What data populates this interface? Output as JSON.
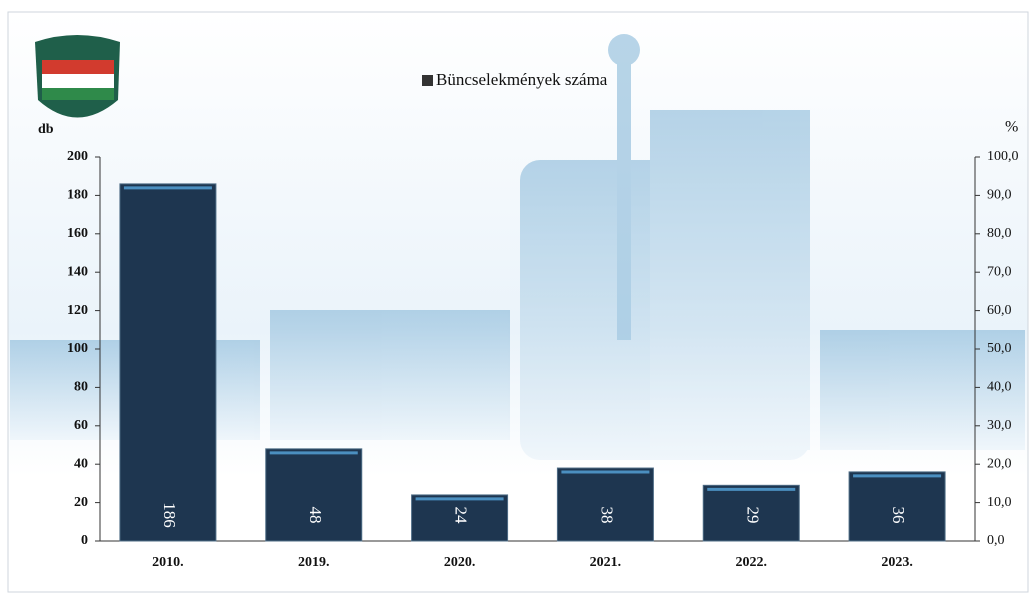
{
  "chart_data": {
    "type": "bar",
    "legend": "Büncselekmények száma",
    "y_label": "db",
    "y2_label": "%",
    "categories": [
      "2010.",
      "2019.",
      "2020.",
      "2021.",
      "2022.",
      "2023."
    ],
    "values": [
      186,
      48,
      24,
      38,
      29,
      36
    ],
    "color": "#1e3650",
    "ylim": [
      0,
      200
    ],
    "yticks": [
      0,
      20,
      40,
      60,
      80,
      100,
      120,
      140,
      160,
      180,
      200
    ],
    "y2lim": [
      0,
      100
    ],
    "y2ticks": [
      {
        "value": 0,
        "label": "0,0"
      },
      {
        "value": 10,
        "label": "10,0"
      },
      {
        "value": 20,
        "label": "20,0"
      },
      {
        "value": 30,
        "label": "30,0"
      },
      {
        "value": 40,
        "label": "40,0"
      },
      {
        "value": 50,
        "label": "50,0"
      },
      {
        "value": 60,
        "label": "60,0"
      },
      {
        "value": 70,
        "label": "70,0"
      },
      {
        "value": 80,
        "label": "80,0"
      },
      {
        "value": 90,
        "label": "90,0"
      },
      {
        "value": 100,
        "label": "100,0"
      }
    ]
  }
}
